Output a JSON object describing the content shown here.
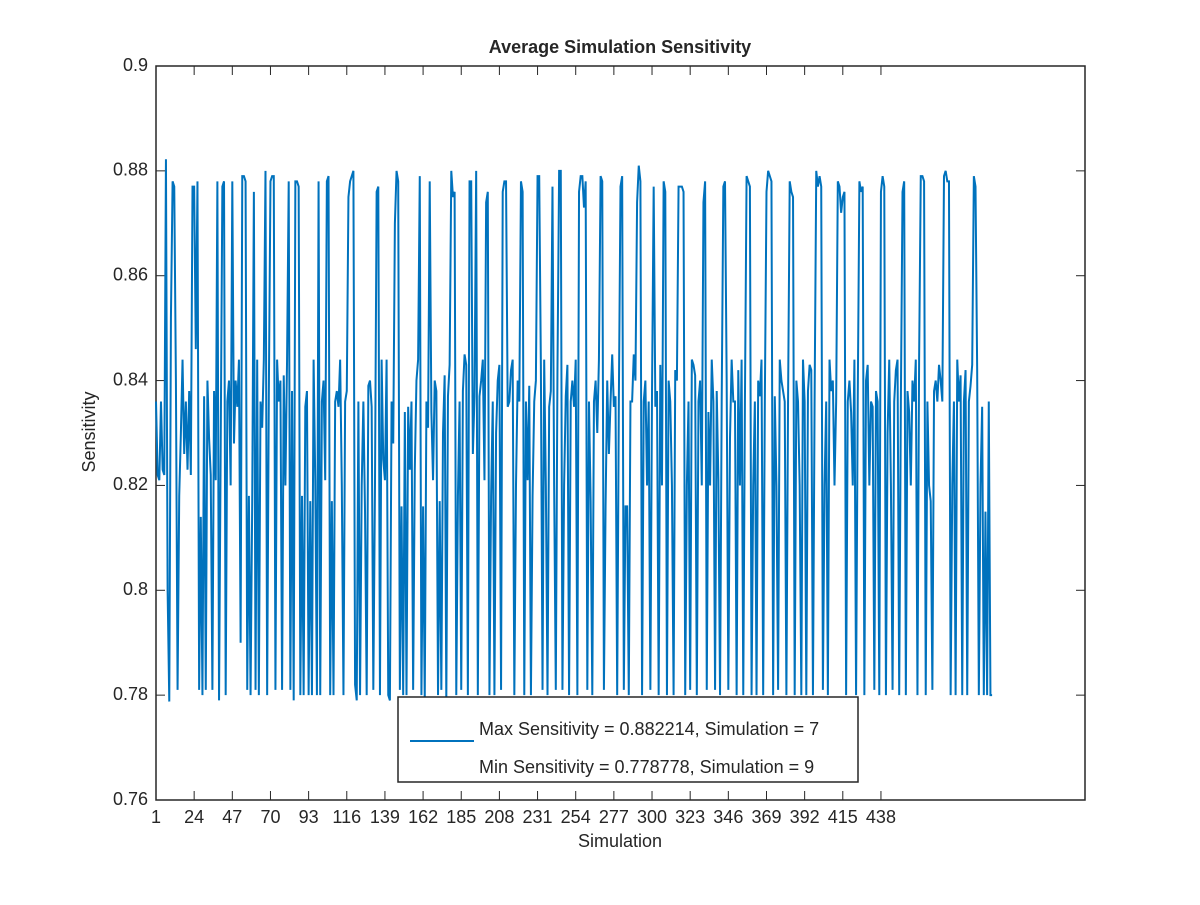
{
  "chart_data": {
    "type": "line",
    "title": "Average Simulation Sensitivity",
    "xlabel": "Simulation",
    "ylabel": "Sensitivity",
    "legend": [
      "Max Sensitivity = 0.882214, Simulation = 7",
      "Min Sensitivity = 0.778778, Simulation = 9"
    ],
    "xlim": [
      1,
      561
    ],
    "xticks": [
      1,
      24,
      47,
      70,
      93,
      116,
      139,
      162,
      185,
      208,
      231,
      254,
      277,
      300,
      323,
      346,
      369,
      392,
      415,
      438
    ],
    "ylim": [
      0.76,
      0.9
    ],
    "yticks": [
      0.76,
      0.78,
      0.8,
      0.82,
      0.84,
      0.86,
      0.88,
      0.9
    ],
    "series": [
      {
        "color": "#0072bd",
        "values": [
          0.836,
          0.822,
          0.821,
          0.836,
          0.823,
          0.822,
          0.882214,
          0.8,
          0.778778,
          0.852,
          0.878,
          0.877,
          0.84,
          0.781,
          0.818,
          0.83,
          0.844,
          0.826,
          0.836,
          0.823,
          0.838,
          0.822,
          0.877,
          0.877,
          0.846,
          0.878,
          0.781,
          0.814,
          0.78,
          0.837,
          0.781,
          0.84,
          0.829,
          0.822,
          0.781,
          0.838,
          0.821,
          0.878,
          0.779,
          0.828,
          0.877,
          0.878,
          0.78,
          0.836,
          0.84,
          0.82,
          0.878,
          0.828,
          0.84,
          0.835,
          0.844,
          0.79,
          0.879,
          0.879,
          0.878,
          0.781,
          0.818,
          0.78,
          0.817,
          0.876,
          0.781,
          0.844,
          0.78,
          0.836,
          0.831,
          0.844,
          0.88,
          0.78,
          0.837,
          0.878,
          0.879,
          0.879,
          0.781,
          0.844,
          0.836,
          0.84,
          0.781,
          0.841,
          0.82,
          0.844,
          0.878,
          0.781,
          0.838,
          0.779,
          0.878,
          0.878,
          0.877,
          0.78,
          0.818,
          0.78,
          0.835,
          0.838,
          0.78,
          0.817,
          0.78,
          0.844,
          0.821,
          0.78,
          0.878,
          0.78,
          0.836,
          0.84,
          0.821,
          0.878,
          0.879,
          0.78,
          0.817,
          0.78,
          0.836,
          0.838,
          0.835,
          0.844,
          0.82,
          0.78,
          0.836,
          0.838,
          0.875,
          0.878,
          0.879,
          0.88,
          0.782,
          0.779,
          0.836,
          0.78,
          0.82,
          0.836,
          0.815,
          0.78,
          0.839,
          0.84,
          0.835,
          0.781,
          0.82,
          0.876,
          0.877,
          0.78,
          0.844,
          0.825,
          0.821,
          0.844,
          0.78,
          0.779,
          0.836,
          0.828,
          0.87,
          0.88,
          0.878,
          0.781,
          0.816,
          0.78,
          0.834,
          0.78,
          0.835,
          0.823,
          0.836,
          0.781,
          0.823,
          0.84,
          0.844,
          0.879,
          0.78,
          0.816,
          0.779,
          0.836,
          0.831,
          0.878,
          0.834,
          0.821,
          0.84,
          0.838,
          0.78,
          0.817,
          0.781,
          0.83,
          0.841,
          0.779,
          0.837,
          0.843,
          0.88,
          0.875,
          0.876,
          0.78,
          0.818,
          0.836,
          0.781,
          0.838,
          0.845,
          0.843,
          0.78,
          0.878,
          0.878,
          0.826,
          0.837,
          0.88,
          0.78,
          0.837,
          0.84,
          0.844,
          0.821,
          0.874,
          0.876,
          0.78,
          0.818,
          0.836,
          0.78,
          0.83,
          0.84,
          0.843,
          0.781,
          0.876,
          0.878,
          0.878,
          0.835,
          0.836,
          0.842,
          0.844,
          0.78,
          0.82,
          0.84,
          0.836,
          0.878,
          0.876,
          0.78,
          0.836,
          0.821,
          0.839,
          0.78,
          0.818,
          0.836,
          0.84,
          0.879,
          0.879,
          0.843,
          0.781,
          0.844,
          0.82,
          0.78,
          0.835,
          0.838,
          0.877,
          0.82,
          0.781,
          0.842,
          0.88,
          0.88,
          0.781,
          0.82,
          0.837,
          0.843,
          0.78,
          0.836,
          0.84,
          0.835,
          0.844,
          0.78,
          0.876,
          0.879,
          0.879,
          0.873,
          0.878,
          0.781,
          0.836,
          0.817,
          0.78,
          0.836,
          0.84,
          0.83,
          0.844,
          0.879,
          0.878,
          0.781,
          0.816,
          0.84,
          0.826,
          0.836,
          0.845,
          0.835,
          0.837,
          0.78,
          0.836,
          0.877,
          0.879,
          0.781,
          0.816,
          0.816,
          0.78,
          0.836,
          0.836,
          0.845,
          0.84,
          0.874,
          0.881,
          0.878,
          0.78,
          0.836,
          0.84,
          0.82,
          0.836,
          0.781,
          0.838,
          0.877,
          0.835,
          0.838,
          0.78,
          0.843,
          0.82,
          0.878,
          0.876,
          0.78,
          0.84,
          0.836,
          0.82,
          0.78,
          0.842,
          0.84,
          0.877,
          0.877,
          0.877,
          0.876,
          0.78,
          0.82,
          0.836,
          0.781,
          0.844,
          0.843,
          0.841,
          0.78,
          0.836,
          0.84,
          0.82,
          0.874,
          0.878,
          0.781,
          0.834,
          0.82,
          0.844,
          0.836,
          0.781,
          0.838,
          0.821,
          0.78,
          0.836,
          0.877,
          0.878,
          0.84,
          0.781,
          0.829,
          0.844,
          0.836,
          0.836,
          0.78,
          0.842,
          0.82,
          0.844,
          0.78,
          0.836,
          0.879,
          0.878,
          0.877,
          0.78,
          0.82,
          0.836,
          0.78,
          0.84,
          0.837,
          0.844,
          0.78,
          0.836,
          0.876,
          0.88,
          0.879,
          0.878,
          0.78,
          0.837,
          0.82,
          0.781,
          0.844,
          0.84,
          0.838,
          0.836,
          0.78,
          0.836,
          0.878,
          0.876,
          0.875,
          0.78,
          0.84,
          0.836,
          0.82,
          0.78,
          0.844,
          0.836,
          0.78,
          0.838,
          0.843,
          0.842,
          0.78,
          0.836,
          0.88,
          0.877,
          0.879,
          0.877,
          0.781,
          0.82,
          0.836,
          0.78,
          0.844,
          0.838,
          0.84,
          0.82,
          0.836,
          0.878,
          0.877,
          0.872,
          0.875,
          0.876,
          0.78,
          0.836,
          0.84,
          0.834,
          0.82,
          0.844,
          0.78,
          0.836,
          0.878,
          0.876,
          0.877,
          0.78,
          0.84,
          0.843,
          0.82,
          0.836,
          0.835,
          0.781,
          0.838,
          0.836,
          0.78,
          0.876,
          0.879,
          0.877,
          0.78,
          0.83,
          0.844,
          0.82,
          0.781,
          0.836,
          0.842,
          0.844,
          0.78,
          0.836,
          0.876,
          0.878,
          0.78,
          0.838,
          0.834,
          0.82,
          0.84,
          0.836,
          0.844,
          0.78,
          0.844,
          0.879,
          0.879,
          0.878,
          0.78,
          0.836,
          0.82,
          0.817,
          0.781,
          0.838,
          0.84,
          0.836,
          0.843,
          0.84,
          0.836,
          0.879,
          0.88,
          0.878,
          0.878,
          0.78,
          0.82,
          0.836,
          0.78,
          0.844,
          0.836,
          0.841,
          0.78,
          0.836,
          0.842,
          0.78,
          0.836,
          0.839,
          0.843,
          0.879,
          0.877,
          0.842,
          0.78,
          0.82,
          0.835,
          0.78,
          0.815,
          0.78,
          0.836,
          0.78,
          0.78
        ]
      }
    ]
  }
}
